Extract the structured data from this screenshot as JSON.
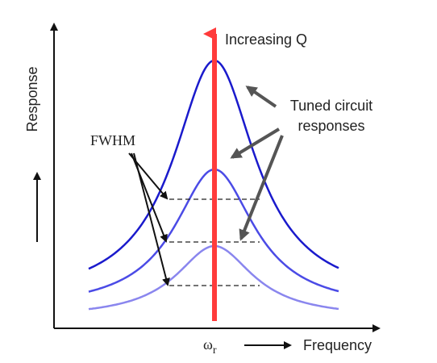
{
  "labels": {
    "y_axis": "Response",
    "x_axis": "Frequency",
    "x_marker_symbol": "ω",
    "x_marker_subscript": "r",
    "top_arrow": "Increasing Q",
    "callout_line1": "Tuned circuit",
    "callout_line2": "responses",
    "fwhm": "FWHM"
  },
  "colors": {
    "curve_high_q": "#1a1acc",
    "curve_mid_q": "#4b4be6",
    "curve_low_q": "#8a86ee",
    "center_line": "#ff3b3b",
    "axis": "#111111",
    "callout_arrow": "#555555",
    "dashed": "#222222"
  }
}
